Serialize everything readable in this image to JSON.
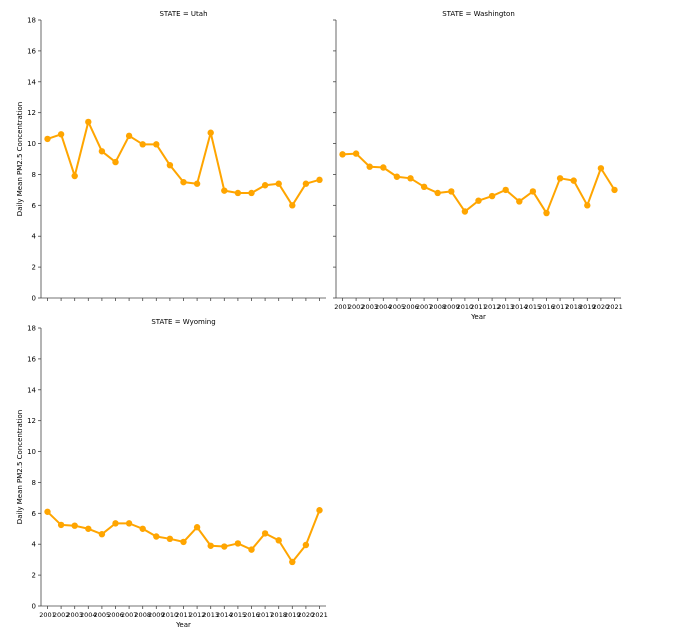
{
  "chart_data": [
    {
      "type": "line",
      "title": "STATE = Utah",
      "xlabel": "",
      "ylabel": "Daily Mean PM2.5 Concentration",
      "x": [
        2001,
        2002,
        2003,
        2004,
        2005,
        2006,
        2007,
        2008,
        2009,
        2010,
        2011,
        2012,
        2013,
        2014,
        2015,
        2016,
        2017,
        2018,
        2019,
        2020,
        2021
      ],
      "x_tick_labels_shown": false,
      "ylim": [
        0,
        18
      ],
      "yticks": [
        0,
        2,
        4,
        6,
        8,
        10,
        12,
        14,
        16,
        18
      ],
      "series": [
        {
          "values": [
            10.3,
            10.6,
            7.9,
            11.4,
            9.5,
            8.8,
            10.5,
            9.95,
            9.95,
            8.6,
            7.5,
            7.4,
            10.7,
            6.95,
            6.8,
            6.8,
            7.3,
            7.4,
            6.0,
            7.4,
            7.65
          ]
        }
      ],
      "color": "#ffa500",
      "grid": false,
      "legend": "none"
    },
    {
      "type": "line",
      "title": "STATE = Washington",
      "xlabel": "Year",
      "ylabel": "",
      "x": [
        2001,
        2002,
        2003,
        2004,
        2005,
        2006,
        2007,
        2008,
        2009,
        2010,
        2011,
        2012,
        2013,
        2014,
        2015,
        2016,
        2017,
        2018,
        2019,
        2020,
        2021
      ],
      "x_tick_labels_shown": true,
      "ylim": [
        0,
        18
      ],
      "yticks": [
        0,
        2,
        4,
        6,
        8,
        10,
        12,
        14,
        16,
        18
      ],
      "y_tick_labels_shown": false,
      "series": [
        {
          "values": [
            9.3,
            9.35,
            8.5,
            8.45,
            7.85,
            7.75,
            7.2,
            6.8,
            6.9,
            5.6,
            6.3,
            6.6,
            7.0,
            6.25,
            6.9,
            5.5,
            7.75,
            7.6,
            6.0,
            8.4,
            7.0
          ]
        }
      ],
      "color": "#ffa500",
      "grid": false,
      "legend": "none"
    },
    {
      "type": "line",
      "title": "STATE = Wyoming",
      "xlabel": "Year",
      "ylabel": "Daily Mean PM2.5 Concentration",
      "x": [
        2001,
        2002,
        2003,
        2004,
        2005,
        2006,
        2007,
        2008,
        2009,
        2010,
        2011,
        2012,
        2013,
        2014,
        2015,
        2016,
        2017,
        2018,
        2019,
        2020,
        2021
      ],
      "x_tick_labels_shown": true,
      "ylim": [
        0,
        18
      ],
      "yticks": [
        0,
        2,
        4,
        6,
        8,
        10,
        12,
        14,
        16,
        18
      ],
      "series": [
        {
          "values": [
            6.1,
            5.25,
            5.2,
            5.0,
            4.65,
            5.35,
            5.35,
            5.0,
            4.5,
            4.35,
            4.15,
            5.1,
            3.9,
            3.85,
            4.05,
            3.65,
            4.7,
            4.25,
            2.85,
            3.95,
            6.2
          ]
        }
      ],
      "color": "#ffa500",
      "grid": false,
      "legend": "none"
    }
  ]
}
